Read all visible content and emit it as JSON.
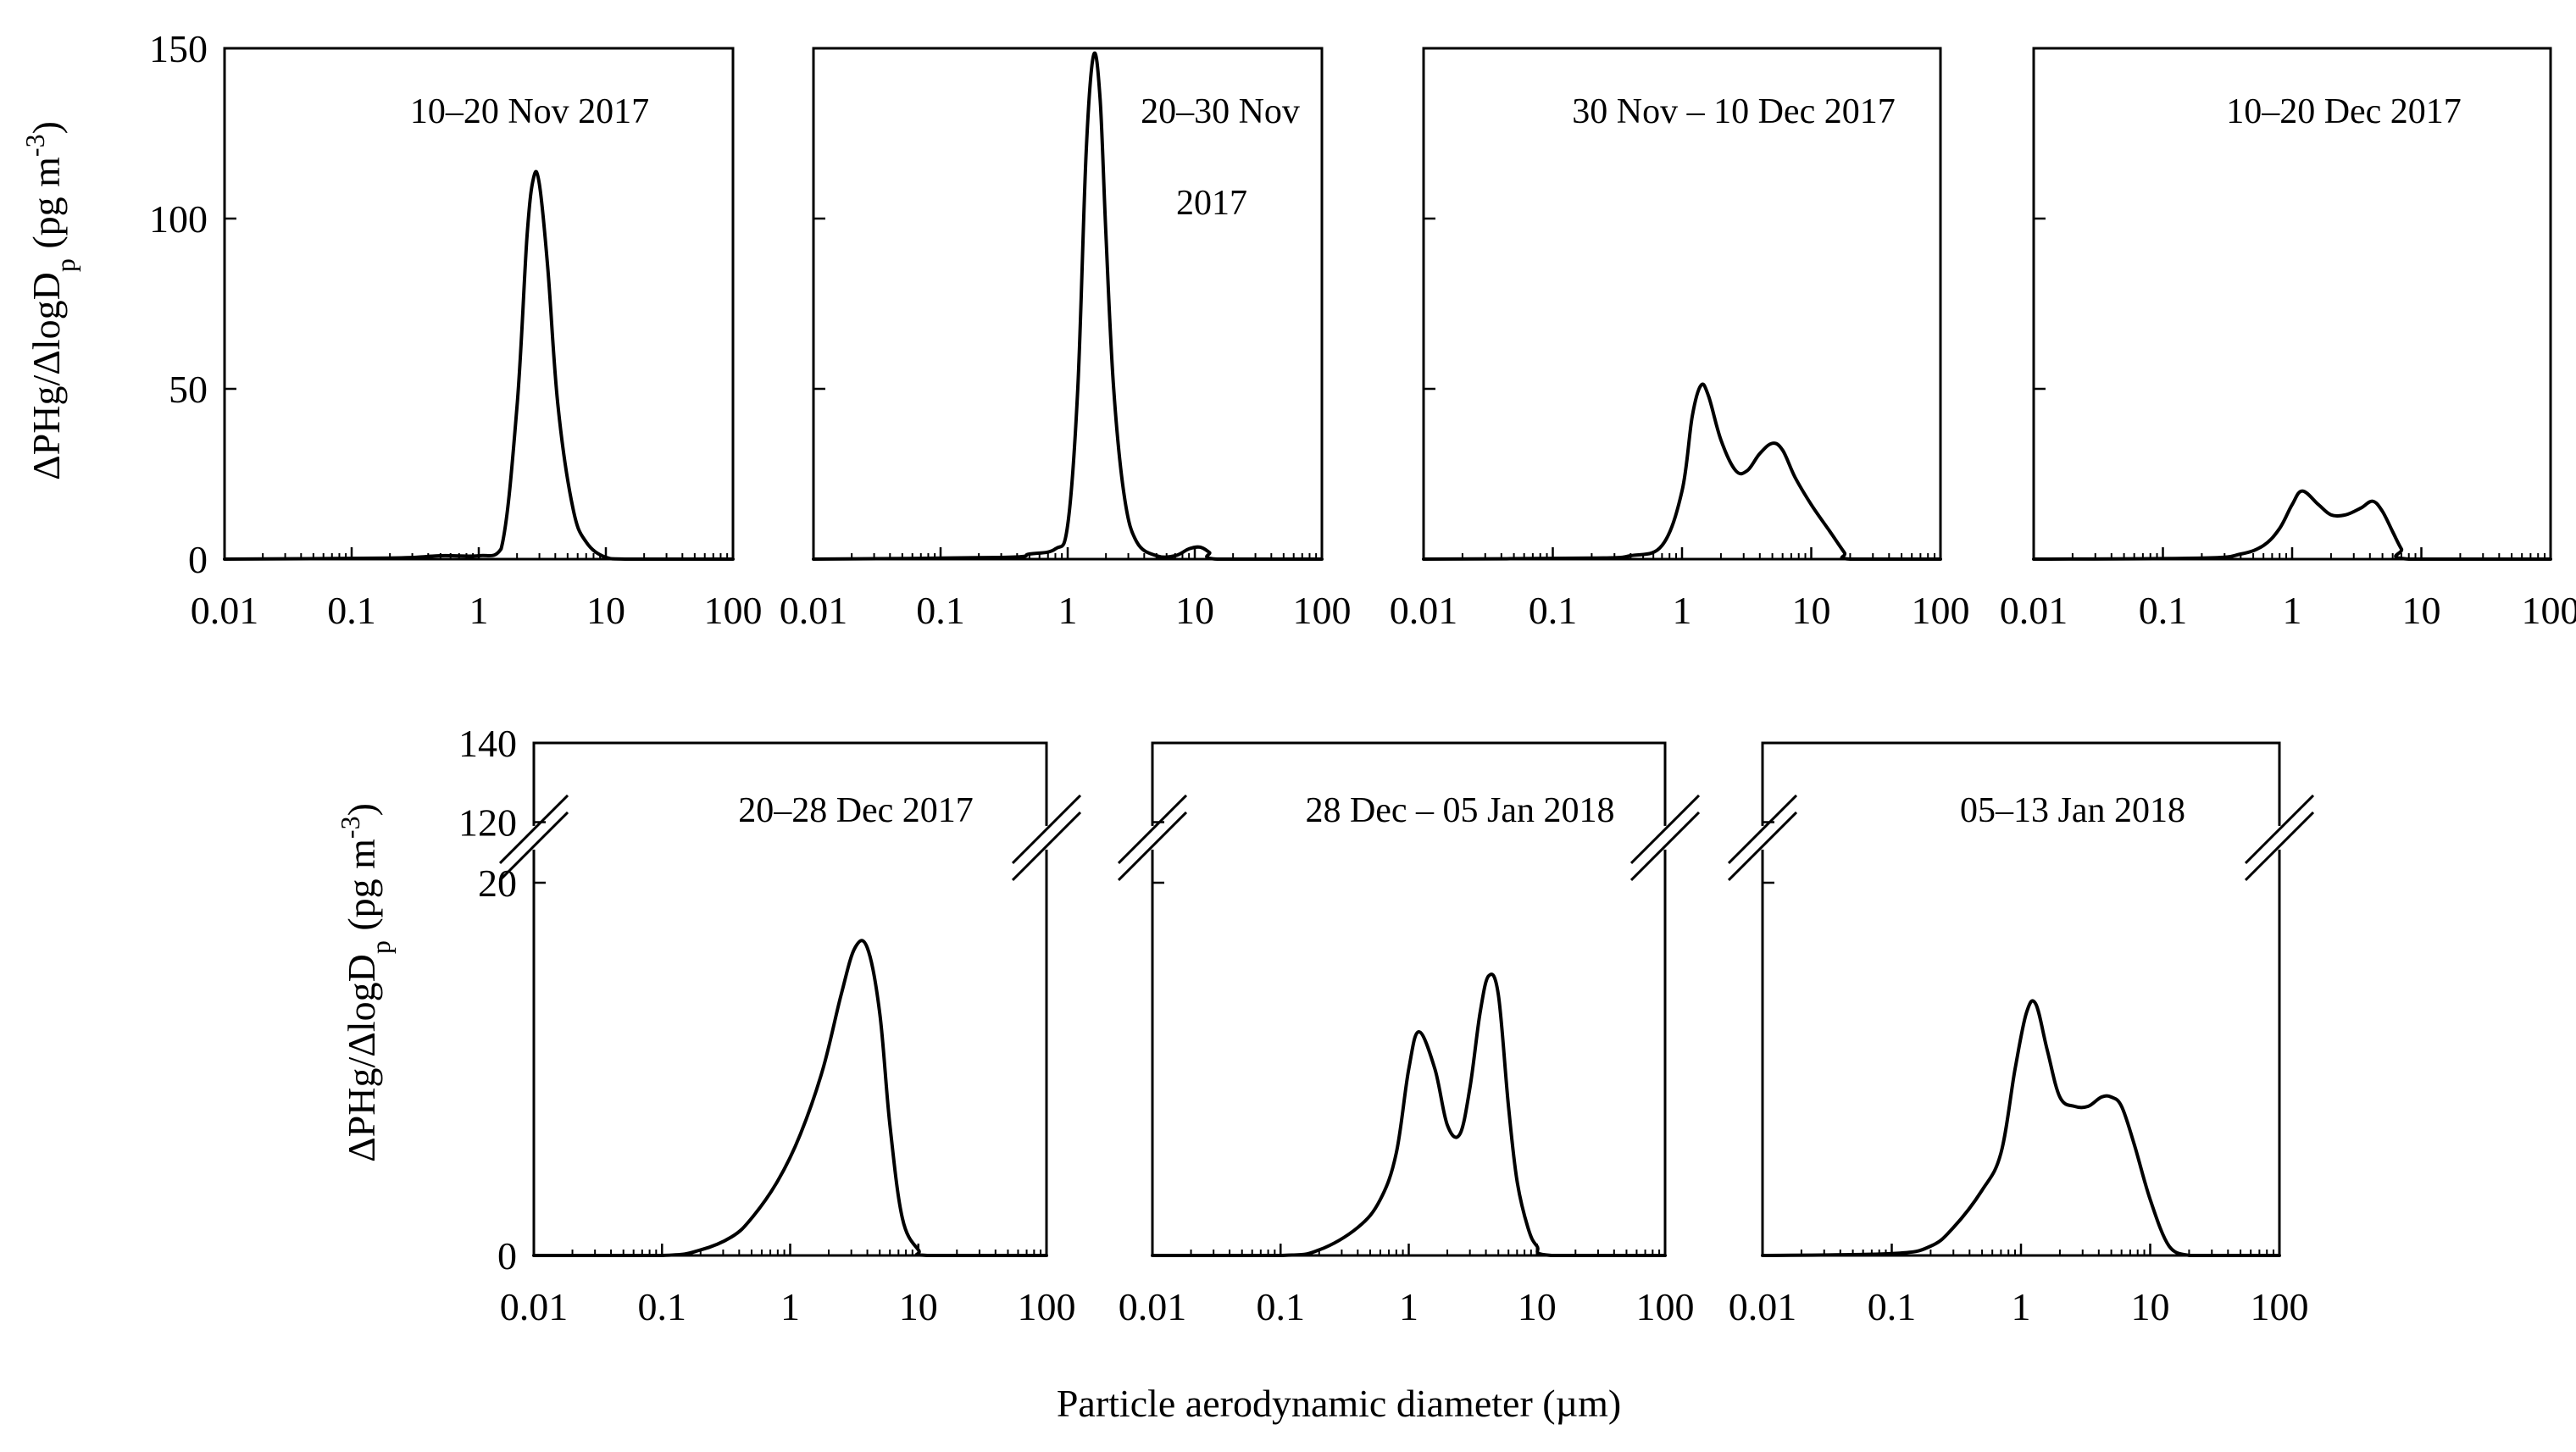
{
  "figure": {
    "xlabel": "Particle aerodynamic diameter (µm)",
    "ylabel": "ΔPHg/ΔlogD",
    "ylabel_sub": "p",
    "ylabel_unit": " (pg m",
    "ylabel_sup": "-3",
    "ylabel_close": ")"
  },
  "chart_data": [
    {
      "type": "line",
      "title": "10–20 Nov 2017",
      "x_scale": "log",
      "xlim": [
        0.01,
        100
      ],
      "ylim": [
        0,
        150
      ],
      "x_ticks": [
        "0.01",
        "0.1",
        "1",
        "10",
        "100"
      ],
      "y_ticks": [
        "0",
        "50",
        "100",
        "150"
      ],
      "x": [
        0.01,
        0.2,
        0.5,
        1,
        1.5,
        2.0,
        2.4,
        2.7,
        3.0,
        3.5,
        4.2,
        5.5,
        7,
        10,
        15,
        100
      ],
      "y": [
        0,
        0.3,
        1,
        1,
        3,
        45,
        95,
        112,
        110,
        85,
        45,
        15,
        5,
        0.5,
        0,
        0
      ]
    },
    {
      "type": "line",
      "title": "20–30 Nov 2017",
      "x_scale": "log",
      "xlim": [
        0.01,
        100
      ],
      "ylim": [
        0,
        150
      ],
      "x_ticks": [
        "0.01",
        "0.1",
        "1",
        "10",
        "100"
      ],
      "y_ticks": [
        "0",
        "50",
        "100",
        "150"
      ],
      "x": [
        0.01,
        0.3,
        0.5,
        0.8,
        1.0,
        1.2,
        1.4,
        1.6,
        1.8,
        2.0,
        2.3,
        2.8,
        3.5,
        5,
        7,
        9,
        11,
        13,
        15,
        100
      ],
      "y": [
        0,
        0.5,
        1.5,
        3,
        10,
        50,
        120,
        148,
        135,
        95,
        50,
        18,
        5,
        1,
        1,
        3,
        3.5,
        2,
        0,
        0
      ]
    },
    {
      "type": "line",
      "title": "30 Nov – 10 Dec 2017",
      "x_scale": "log",
      "xlim": [
        0.01,
        100
      ],
      "ylim": [
        0,
        150
      ],
      "x_ticks": [
        "0.01",
        "0.1",
        "1",
        "10",
        "100"
      ],
      "y_ticks": [
        "0",
        "50",
        "100",
        "150"
      ],
      "x": [
        0.01,
        0.2,
        0.4,
        0.7,
        1.0,
        1.2,
        1.4,
        1.6,
        2.0,
        2.6,
        3.2,
        4.0,
        5.0,
        6.0,
        7.5,
        10,
        14,
        18,
        20,
        100
      ],
      "y": [
        0,
        0.3,
        1,
        4,
        20,
        42,
        51,
        48,
        35,
        26,
        26,
        31,
        34,
        32,
        24,
        16,
        8,
        2,
        0,
        0
      ]
    },
    {
      "type": "line",
      "title": "10–20 Dec 2017",
      "x_scale": "log",
      "xlim": [
        0.01,
        100
      ],
      "ylim": [
        0,
        150
      ],
      "x_ticks": [
        "0.01",
        "0.1",
        "1",
        "10",
        "100"
      ],
      "y_ticks": [
        "0",
        "50",
        "100",
        "150"
      ],
      "x": [
        0.01,
        0.2,
        0.4,
        0.6,
        0.8,
        1.0,
        1.2,
        1.6,
        2.0,
        2.6,
        3.4,
        4.2,
        5.0,
        6.0,
        7.0,
        8.0,
        100
      ],
      "y": [
        0,
        0.3,
        1.5,
        4,
        9,
        16,
        20,
        16,
        13,
        13,
        15,
        17,
        14,
        8,
        3,
        0,
        0
      ]
    },
    {
      "type": "line",
      "title": "20–28 Dec 2017",
      "x_scale": "log",
      "xlim": [
        0.01,
        100
      ],
      "ylim": [
        0,
        140
      ],
      "y_axis_break": [
        22,
        118
      ],
      "x_ticks": [
        "0.01",
        "0.1",
        "1",
        "10",
        "100"
      ],
      "y_ticks": [
        "0",
        "20",
        "120",
        "140"
      ],
      "x": [
        0.01,
        0.1,
        0.2,
        0.35,
        0.5,
        0.8,
        1.2,
        1.8,
        2.5,
        3.2,
        4.0,
        5.0,
        6.0,
        7.5,
        10,
        12,
        100
      ],
      "y": [
        0,
        0,
        0.3,
        1,
        2,
        4,
        6.5,
        10,
        14,
        16.5,
        16.5,
        13,
        7,
        2,
        0.3,
        0,
        0
      ]
    },
    {
      "type": "line",
      "title": "28 Dec – 05 Jan 2018",
      "x_scale": "log",
      "xlim": [
        0.01,
        100
      ],
      "ylim": [
        0,
        140
      ],
      "y_axis_break": [
        22,
        118
      ],
      "x_ticks": [
        "0.01",
        "0.1",
        "1",
        "10",
        "100"
      ],
      "y_ticks": [
        "0",
        "20",
        "120",
        "140"
      ],
      "x": [
        0.01,
        0.1,
        0.2,
        0.4,
        0.6,
        0.8,
        1.0,
        1.2,
        1.6,
        2.0,
        2.5,
        3.0,
        3.6,
        4.2,
        5.0,
        6.0,
        7.0,
        8.5,
        10,
        13,
        100
      ],
      "y": [
        0,
        0,
        0.3,
        1.5,
        3,
        5.5,
        10,
        12,
        10,
        7,
        6.5,
        9,
        13,
        15,
        14,
        8,
        4,
        1.5,
        0.5,
        0,
        0
      ]
    },
    {
      "type": "line",
      "title": "05–13 Jan 2018",
      "x_scale": "log",
      "xlim": [
        0.01,
        100
      ],
      "ylim": [
        0,
        140
      ],
      "y_axis_break": [
        22,
        118
      ],
      "x_ticks": [
        "0.01",
        "0.1",
        "1",
        "10",
        "100"
      ],
      "y_ticks": [
        "0",
        "20",
        "120",
        "140"
      ],
      "x": [
        0.01,
        0.1,
        0.2,
        0.3,
        0.5,
        0.7,
        0.9,
        1.1,
        1.3,
        1.6,
        2.0,
        2.6,
        3.3,
        4.2,
        5.0,
        6.0,
        7.5,
        10,
        14,
        20,
        25,
        100
      ],
      "y": [
        0,
        0.1,
        0.5,
        1.5,
        3.5,
        5.5,
        10,
        13,
        13.5,
        11,
        8.5,
        8,
        8,
        8.5,
        8.5,
        8,
        6,
        3,
        0.5,
        0,
        0,
        0
      ]
    }
  ]
}
